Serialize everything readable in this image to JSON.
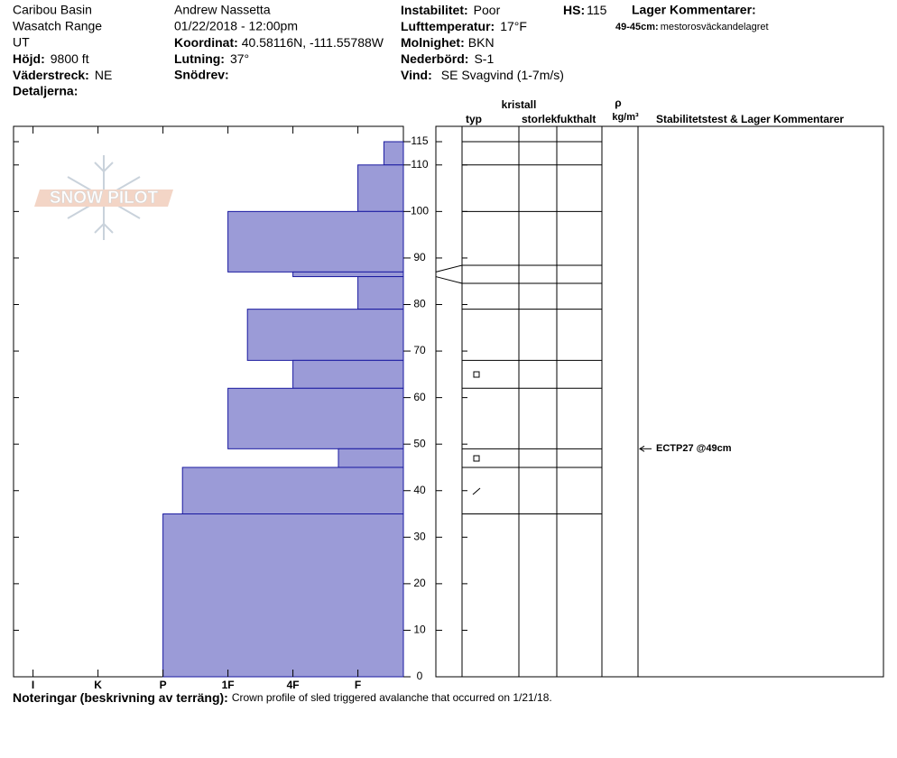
{
  "header": {
    "location": [
      "Caribou Basin",
      "Wasatch Range",
      "UT"
    ],
    "elevation": {
      "label": "Höjd:",
      "value": "9800 ft"
    },
    "aspect": {
      "label": "Väderstreck:",
      "value": "NE"
    },
    "details": {
      "label": "Detaljerna:"
    },
    "observer": "Andrew Nassetta",
    "datetime": "01/22/2018 - 12:00pm",
    "coordinates": {
      "label": "Koordinat:",
      "value": "40.58116N, -111.55788W"
    },
    "slope": {
      "label": "Lutning:",
      "value": "37°"
    },
    "wind_loading": {
      "label": "Snödrev:"
    },
    "instability": {
      "label": "Instabilitet:",
      "value": "Poor"
    },
    "air_temp": {
      "label": "Lufttemperatur:",
      "value": "17°F"
    },
    "sky": {
      "label": "Molnighet:",
      "value": "BKN"
    },
    "precip": {
      "label": "Nederbörd:",
      "value": "S-1"
    },
    "wind": {
      "label": "Vind:",
      "value": "SE Svagvind (1-7m/s)"
    },
    "hs": {
      "label": "HS:",
      "value": "115"
    },
    "layer_comments": {
      "label": "Lager Kommentarer:",
      "items": [
        {
          "range": "49-45cm:",
          "text": "mestorosväckandelagret"
        }
      ]
    }
  },
  "logo": "SNOW PILOT",
  "chart_data": {
    "type": "snow_profile",
    "layers": {
      "top": [
        115,
        110,
        100,
        87,
        86,
        79,
        68,
        62,
        49,
        45,
        35
      ],
      "bottom": [
        110,
        100,
        87,
        86,
        79,
        68,
        62,
        49,
        45,
        35,
        0
      ],
      "hardness": [
        0.6,
        1,
        3,
        2,
        1,
        2.7,
        2,
        3,
        1.3,
        3.7,
        4
      ]
    },
    "color": "#9b9bd7",
    "ylim": [
      0,
      118.3
    ],
    "yticks": [
      0,
      10,
      20,
      30,
      40,
      50,
      60,
      70,
      80,
      90,
      100,
      110,
      115
    ],
    "xlim": [
      6.3,
      0.3
    ],
    "xticks": [
      {
        "value": 6,
        "label": "I"
      },
      {
        "value": 5,
        "label": "K"
      },
      {
        "value": 4,
        "label": "P"
      },
      {
        "value": 3,
        "label": "1F"
      },
      {
        "value": 2,
        "label": "4F"
      },
      {
        "value": 1,
        "label": "F"
      }
    ],
    "stability_tests": [
      {
        "label": "ECTP27 @49cm",
        "depth": 49
      }
    ]
  },
  "table": {
    "columns": [
      "typ",
      "kristall",
      "storlek",
      "fukthalt",
      "ρ",
      "kg/m³",
      "Stabilitetstest & Lager Kommentarer"
    ]
  },
  "notes": {
    "label": "Noteringar (beskrivning av terräng):",
    "text": "Crown profile of sled triggered avalanche that occurred on 1/21/18."
  }
}
